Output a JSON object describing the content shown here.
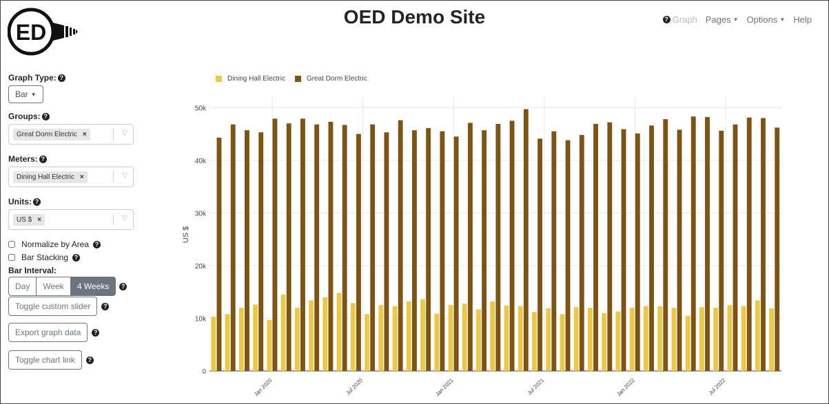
{
  "header": {
    "title": "OED Demo Site",
    "logo_text": "ED",
    "nav": {
      "graph": "Graph",
      "pages": "Pages",
      "options": "Options",
      "help": "Help"
    }
  },
  "sidebar": {
    "graph_type_label": "Graph Type:",
    "graph_type_value": "Bar",
    "groups_label": "Groups:",
    "groups_chip": "Great Dorm Electric",
    "meters_label": "Meters:",
    "meters_chip": "Dining Hall Electric",
    "units_label": "Units:",
    "units_chip": "US $",
    "normalize_label": "Normalize by Area",
    "stacking_label": "Bar Stacking",
    "bar_interval_label": "Bar Interval:",
    "intervals": [
      "Day",
      "Week",
      "4 Weeks"
    ],
    "toggle_slider": "Toggle custom slider",
    "export_data": "Export graph data",
    "toggle_link": "Toggle chart link"
  },
  "colors": {
    "dining": "#e9c84a",
    "dorm": "#7b5416",
    "active_interval": "#6c757d"
  },
  "chart_data": {
    "type": "bar",
    "ylabel": "US $",
    "ylim": [
      0,
      52000
    ],
    "yticks": [
      0,
      10000,
      20000,
      30000,
      40000,
      50000
    ],
    "ytick_labels": [
      "0",
      "10k",
      "20k",
      "30k",
      "40k",
      "50k"
    ],
    "xtick_labels": [
      "Jan 2020",
      "Jul 2020",
      "Jan 2021",
      "Jul 2021",
      "Jan 2022",
      "Jul 2022"
    ],
    "xtick_positions": [
      4.5,
      11,
      17.5,
      24,
      30.5,
      37
    ],
    "series": [
      {
        "name": "Dining Hall Electric",
        "values": [
          10300,
          10800,
          12000,
          12600,
          9700,
          14500,
          12000,
          13400,
          14000,
          14800,
          12900,
          10800,
          12500,
          12300,
          13200,
          13600,
          10900,
          12500,
          12800,
          11700,
          13200,
          12400,
          12300,
          11200,
          11900,
          10800,
          12100,
          12000,
          11000,
          11300,
          12000,
          12300,
          12300,
          12000,
          10500,
          12100,
          12000,
          12500,
          12300,
          13400,
          11900
        ]
      },
      {
        "name": "Great Dorm Electric",
        "values": [
          44300,
          46800,
          45700,
          45300,
          47900,
          47000,
          47900,
          46800,
          47300,
          46700,
          45000,
          46800,
          45300,
          47600,
          45700,
          46100,
          45500,
          44500,
          47100,
          45700,
          46900,
          47500,
          49700,
          44100,
          45500,
          43800,
          44800,
          46900,
          47200,
          45900,
          45100,
          46600,
          47800,
          45800,
          48300,
          48200,
          45600,
          46800,
          48100,
          48000,
          46200
        ]
      }
    ]
  }
}
